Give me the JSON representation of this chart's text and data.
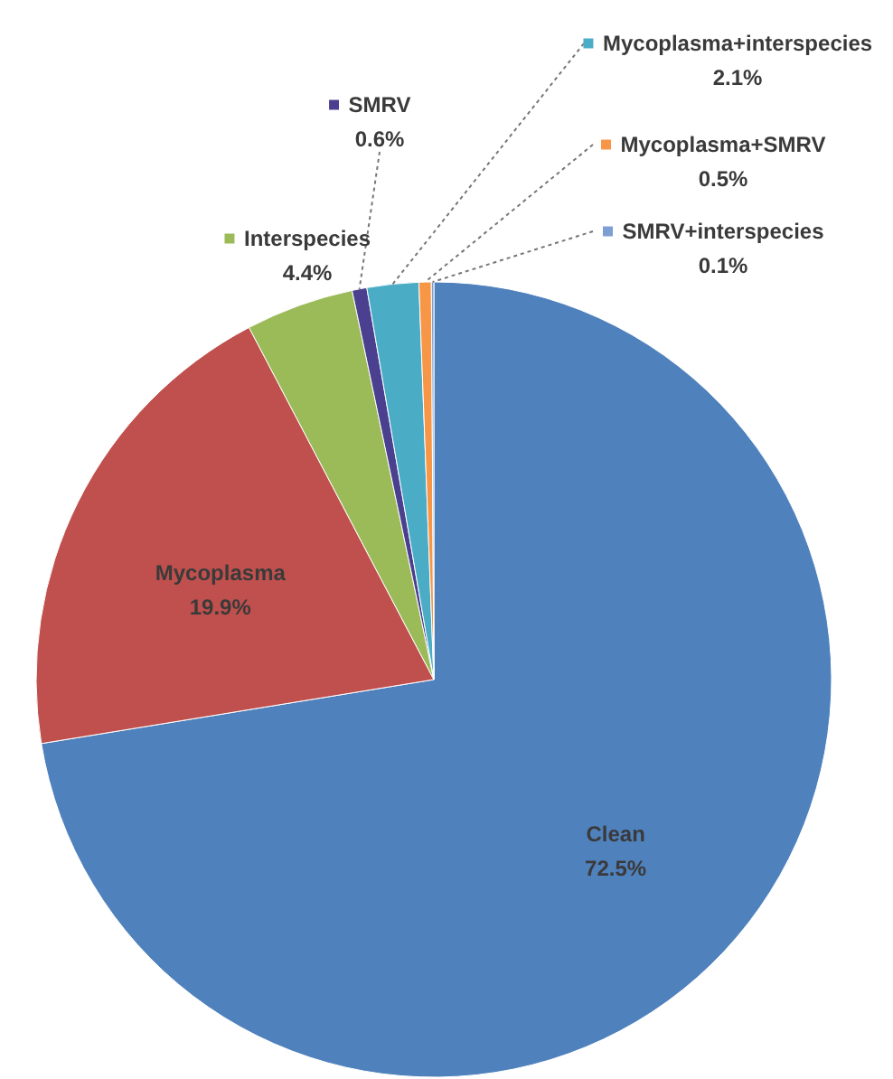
{
  "chart_data": {
    "type": "pie",
    "categories": [
      "Clean",
      "Mycoplasma",
      "Interspecies",
      "SMRV",
      "Mycoplasma+interspecies",
      "Mycoplasma+SMRV",
      "SMRV+interspecies"
    ],
    "values": [
      72.5,
      19.9,
      4.4,
      0.6,
      2.1,
      0.5,
      0.1
    ],
    "colors": [
      "#4f81bd",
      "#c0504d",
      "#9bbb59",
      "#4b3f8f",
      "#4bacc6",
      "#f79646",
      "#7d9fd4"
    ],
    "value_labels": [
      "72.5%",
      "19.9%",
      "4.4%",
      "0.6%",
      "2.1%",
      "0.5%",
      "0.1%"
    ],
    "legend": "top right"
  }
}
